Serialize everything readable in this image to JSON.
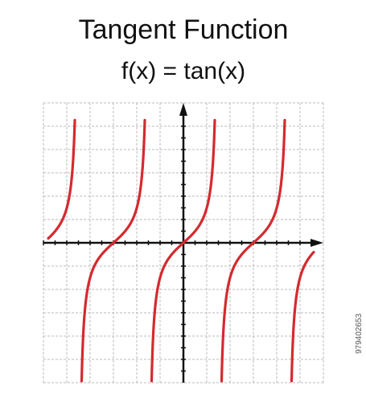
{
  "header": {
    "title": "Tangent Function",
    "formula": "f(x) = tan(x)"
  },
  "watermark": {
    "id": "979402653"
  }
}
